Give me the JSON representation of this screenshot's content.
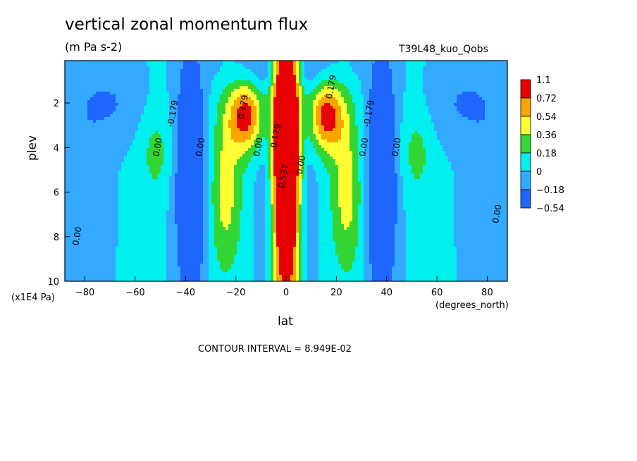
{
  "header": {
    "title": "vertical zonal momentum flux",
    "units": "(m Pa s-2)",
    "run_label": "T39L48_kuo_Qobs"
  },
  "footer": {
    "contour_interval": "CONTOUR INTERVAL = 8.949E-02"
  },
  "chart_data": {
    "type": "heatmap",
    "title": "vertical zonal momentum flux",
    "subtitle": "(m Pa s-2)",
    "xlabel": "lat",
    "x_unit": "(degrees_north)",
    "ylabel": "plev",
    "y_unit": "(x1E4 Pa)",
    "xlim": [
      -88,
      88
    ],
    "ylim": [
      10,
      0.1
    ],
    "x_ticks": [
      -80,
      -60,
      -40,
      -20,
      0,
      20,
      40,
      60,
      80
    ],
    "y_ticks": [
      2,
      4,
      6,
      8,
      10
    ],
    "colorbar": {
      "labels": [
        "1.1",
        "0.72",
        "0.54",
        "0.36",
        "0.18",
        "0",
        "−0.18",
        "−0.54"
      ],
      "colors": [
        "#e60000",
        "#f7a600",
        "#ffff33",
        "#33d633",
        "#00f0f0",
        "#33aaff",
        "#1f66ff"
      ]
    },
    "levels": [
      -0.54,
      -0.18,
      0,
      0.18,
      0.36,
      0.54,
      0.72,
      1.1
    ],
    "contour_labels": [
      {
        "text": "0.00",
        "lat": -82,
        "plev": 8.0
      },
      {
        "text": "0.00",
        "lat": -50,
        "plev": 4.0
      },
      {
        "text": "-0.179",
        "lat": -44,
        "plev": 2.5
      },
      {
        "text": "0.00",
        "lat": -33,
        "plev": 4.0
      },
      {
        "text": "0.179",
        "lat": -16,
        "plev": 2.2
      },
      {
        "text": "0.00",
        "lat": -10,
        "plev": 4.0
      },
      {
        "text": "0.179",
        "lat": -3,
        "plev": 3.5
      },
      {
        "text": "0.537",
        "lat": 0,
        "plev": 5.3
      },
      {
        "text": "0.00",
        "lat": 7,
        "plev": 4.8
      },
      {
        "text": "0.179",
        "lat": 19,
        "plev": 1.3
      },
      {
        "text": "-0.179",
        "lat": 34,
        "plev": 2.5
      },
      {
        "text": "0.00",
        "lat": 32,
        "plev": 4.0
      },
      {
        "text": "0.00",
        "lat": 45,
        "plev": 4.0
      },
      {
        "text": "0.00",
        "lat": 85,
        "plev": 7.0
      }
    ],
    "field_features": [
      {
        "lat": 0,
        "plev": 3.5,
        "width": 3.5,
        "depth": 4.2,
        "amp": 1.35
      },
      {
        "lat": 0,
        "plev": 7.0,
        "width": 4.0,
        "depth": 6.5,
        "amp": 0.45
      },
      {
        "lat": -16,
        "plev": 2.6,
        "width": 5.0,
        "depth": 1.1,
        "amp": 0.78
      },
      {
        "lat": 16,
        "plev": 2.6,
        "width": 5.0,
        "depth": 1.1,
        "amp": 0.78
      },
      {
        "lat": -24,
        "plev": 6.0,
        "width": 4.5,
        "depth": 2.6,
        "amp": 0.42
      },
      {
        "lat": 24,
        "plev": 6.0,
        "width": 4.5,
        "depth": 2.6,
        "amp": 0.42
      },
      {
        "lat": -38,
        "plev": 5.5,
        "width": 4.0,
        "depth": 3.8,
        "amp": -0.65
      },
      {
        "lat": 38,
        "plev": 5.5,
        "width": 4.0,
        "depth": 3.8,
        "amp": -0.65
      },
      {
        "lat": -52,
        "plev": 4.2,
        "width": 4.5,
        "depth": 1.5,
        "amp": 0.22
      },
      {
        "lat": 52,
        "plev": 4.2,
        "width": 4.5,
        "depth": 1.5,
        "amp": 0.22
      },
      {
        "lat": -8,
        "plev": 6.0,
        "width": 3.0,
        "depth": 4.0,
        "amp": -0.16
      },
      {
        "lat": 8,
        "plev": 6.0,
        "width": 3.0,
        "depth": 4.0,
        "amp": -0.16
      },
      {
        "lat": -70,
        "plev": 2.0,
        "width": 10.0,
        "depth": 1.2,
        "amp": -0.2
      },
      {
        "lat": 70,
        "plev": 2.0,
        "width": 10.0,
        "depth": 1.2,
        "amp": -0.2
      },
      {
        "lat": -82,
        "plev": 7.0,
        "width": 7.0,
        "depth": 3.5,
        "amp": -0.2
      },
      {
        "lat": 82,
        "plev": 7.0,
        "width": 7.0,
        "depth": 3.5,
        "amp": -0.2
      },
      {
        "lat": 0,
        "plev": 0.5,
        "width": 18.0,
        "depth": 0.6,
        "amp": -0.2
      }
    ]
  }
}
